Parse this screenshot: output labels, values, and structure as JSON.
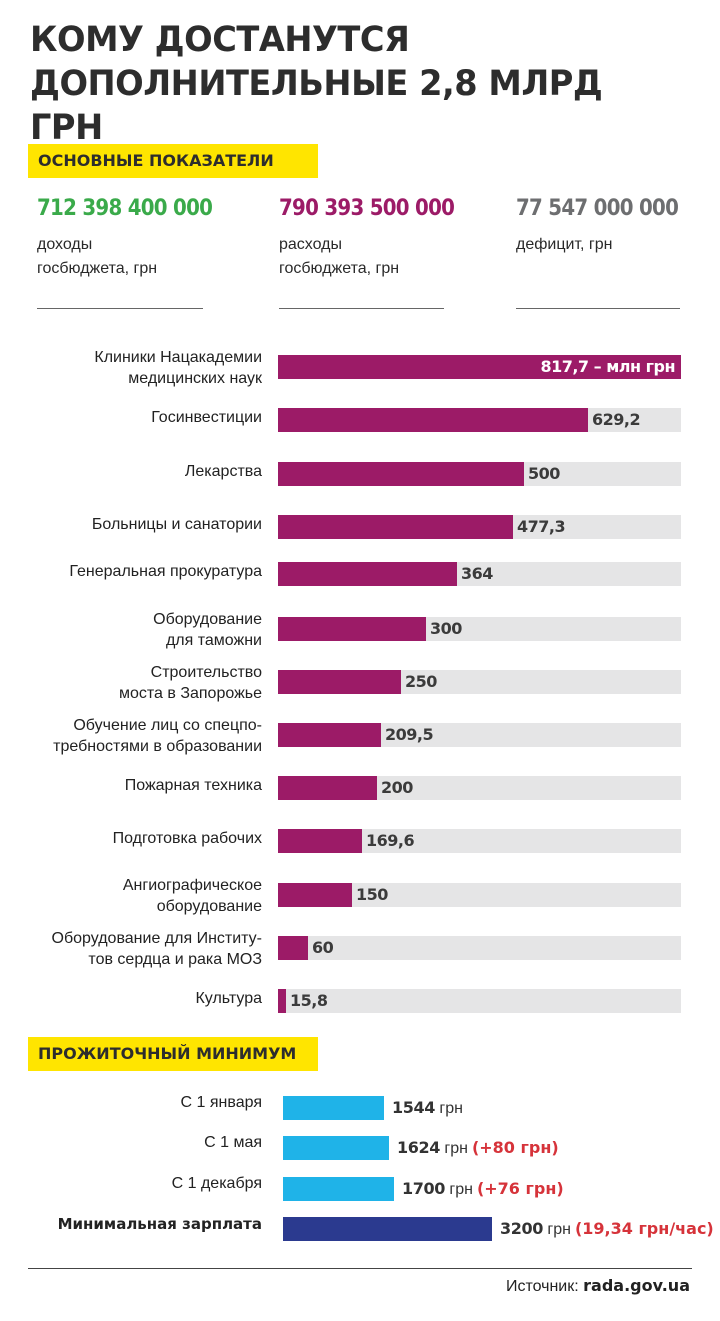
{
  "title": {
    "line1": "КОМУ ДОСТАНУТСЯ",
    "line2": "ДОПОЛНИТЕЛЬНЫЕ 2,8 МЛРД ГРН"
  },
  "section_main": "ОСНОВНЫЕ ПОКАЗАТЕЛИ",
  "indicators": [
    {
      "value": "712 398 400 000",
      "label1": "доходы",
      "label2": "госбюджета, грн",
      "color": "#3aaa4a"
    },
    {
      "value": "790 393 500 000",
      "label1": "расходы",
      "label2": "госбюджета, грн",
      "color": "#9c1b67"
    },
    {
      "value": "77 547 000 000",
      "label1": "дефицит, грн",
      "label2": "",
      "color": "#6d6e70"
    }
  ],
  "colors": {
    "bar": "#9c1b67",
    "track": "#e5e5e6",
    "min_bar": "#1fb3e8",
    "salary_bar": "#2b3a8f",
    "highlight": "#ffe500",
    "delta": "#d6333a"
  },
  "chart_data": {
    "type": "bar",
    "orientation": "horizontal",
    "unit_label": "млн грн",
    "xlim": [
      0,
      817.7
    ],
    "categories": [
      [
        "Клиники Нацакадемии",
        "медицинских наук"
      ],
      [
        "Госинвестиции"
      ],
      [
        "Лекарства"
      ],
      [
        "Больницы и санатории"
      ],
      [
        "Генеральная прокуратура"
      ],
      [
        "Оборудование",
        "для таможни"
      ],
      [
        "Строительство",
        "моста в Запорожье"
      ],
      [
        "Обучение лиц со спецпо-",
        "требностями в образовании"
      ],
      [
        "Пожарная техника"
      ],
      [
        "Подготовка рабочих"
      ],
      [
        "Ангиографическое",
        "оборудование"
      ],
      [
        "Оборудование для Институ-",
        "тов сердца и рака МОЗ"
      ],
      [
        "Культура"
      ]
    ],
    "values": [
      817.7,
      629.2,
      500,
      477.3,
      364,
      300,
      250,
      209.5,
      200,
      169.6,
      150,
      60,
      15.8
    ],
    "value_labels": [
      "817,7 – млн грн",
      "629,2",
      "500",
      "477,3",
      "364",
      "300",
      "250",
      "209,5",
      "200",
      "169,6",
      "150",
      "60",
      "15,8"
    ]
  },
  "section_min": "ПРОЖИТОЧНЫЙ МИНИМУМ",
  "minimum": {
    "unit": "грн",
    "rows": [
      {
        "label": "С 1 января",
        "value": 1544,
        "value_text": "1544",
        "delta": "",
        "bold_label": false
      },
      {
        "label": "С 1 мая",
        "value": 1624,
        "value_text": "1624",
        "delta": "(+80 грн)",
        "bold_label": false
      },
      {
        "label": "С 1 декабря",
        "value": 1700,
        "value_text": "1700",
        "delta": "(+76 грн)",
        "bold_label": false
      },
      {
        "label": "Минимальная зарплата",
        "value": 3200,
        "value_text": "3200",
        "delta": "(19,34 грн/час)",
        "bold_label": true
      }
    ]
  },
  "source": {
    "prefix": "Источник:",
    "site": "rada.gov.ua"
  }
}
